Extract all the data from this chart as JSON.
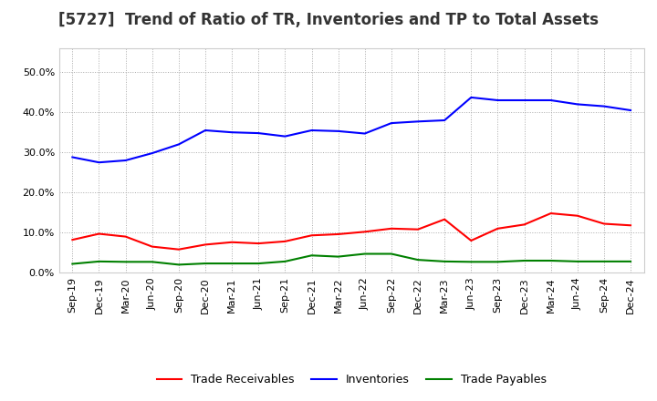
{
  "title": "[5727]  Trend of Ratio of TR, Inventories and TP to Total Assets",
  "x_labels": [
    "Sep-19",
    "Dec-19",
    "Mar-20",
    "Jun-20",
    "Sep-20",
    "Dec-20",
    "Mar-21",
    "Jun-21",
    "Sep-21",
    "Dec-21",
    "Mar-22",
    "Jun-22",
    "Sep-22",
    "Dec-22",
    "Mar-23",
    "Jun-23",
    "Sep-23",
    "Dec-23",
    "Mar-24",
    "Jun-24",
    "Sep-24",
    "Dec-24"
  ],
  "trade_receivables": [
    0.082,
    0.097,
    0.09,
    0.065,
    0.058,
    0.07,
    0.076,
    0.073,
    0.078,
    0.093,
    0.096,
    0.102,
    0.11,
    0.108,
    0.133,
    0.08,
    0.11,
    0.12,
    0.148,
    0.142,
    0.122,
    0.118
  ],
  "inventories": [
    0.288,
    0.275,
    0.28,
    0.298,
    0.32,
    0.355,
    0.35,
    0.348,
    0.34,
    0.355,
    0.353,
    0.347,
    0.373,
    0.377,
    0.38,
    0.437,
    0.43,
    0.43,
    0.43,
    0.42,
    0.415,
    0.405
  ],
  "trade_payables": [
    0.022,
    0.028,
    0.027,
    0.027,
    0.02,
    0.023,
    0.023,
    0.023,
    0.028,
    0.043,
    0.04,
    0.047,
    0.047,
    0.032,
    0.028,
    0.027,
    0.027,
    0.03,
    0.03,
    0.028,
    0.028,
    0.028
  ],
  "tr_color": "#ff0000",
  "inv_color": "#0000ff",
  "tp_color": "#008000",
  "ylim": [
    0.0,
    0.56
  ],
  "yticks": [
    0.0,
    0.1,
    0.2,
    0.3,
    0.4,
    0.5
  ],
  "background_color": "#ffffff",
  "plot_bg_color": "#ffffff",
  "grid_color": "#aaaaaa",
  "title_fontsize": 12,
  "tick_fontsize": 8,
  "legend_labels": [
    "Trade Receivables",
    "Inventories",
    "Trade Payables"
  ]
}
